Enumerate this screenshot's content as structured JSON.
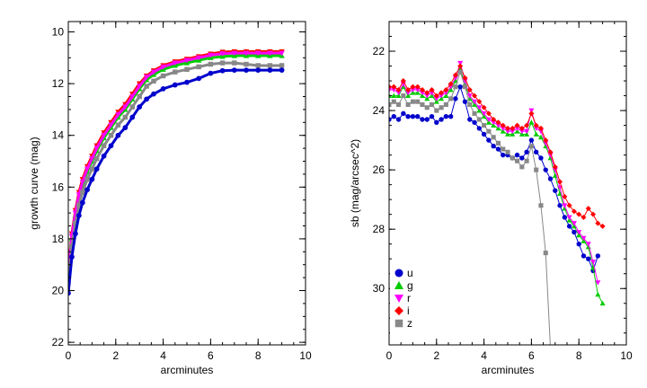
{
  "chart_data": [
    {
      "type": "line",
      "xlabel": "arcminutes",
      "ylabel": "growth curve (mag)",
      "xlim": [
        0,
        10
      ],
      "ylim": [
        22.1,
        9.6
      ],
      "y_inverted": true,
      "x_ticks": [
        0,
        2,
        4,
        6,
        8,
        10
      ],
      "y_ticks": [
        10,
        12,
        14,
        16,
        18,
        20,
        22
      ],
      "x_tick_labels": [
        "0",
        "2",
        "4",
        "6",
        "8",
        "10"
      ],
      "y_tick_labels": [
        "10",
        "12",
        "14",
        "16",
        "18",
        "20",
        "22"
      ],
      "series": [
        {
          "color": "#ff0000",
          "marker": "triangle-down",
          "x": [
            0.0,
            0.15,
            0.3,
            0.45,
            0.6,
            0.8,
            1.0,
            1.2,
            1.5,
            1.8,
            2.1,
            2.4,
            2.7,
            3.0,
            3.3,
            3.6,
            4.0,
            4.5,
            5.0,
            5.5,
            6.0,
            6.5,
            7.0,
            7.5,
            8.0,
            8.5,
            9.0
          ],
          "y": [
            19.2,
            17.8,
            16.9,
            16.2,
            15.7,
            15.2,
            14.8,
            14.4,
            13.9,
            13.5,
            13.1,
            12.8,
            12.4,
            12.0,
            11.7,
            11.5,
            11.3,
            11.15,
            11.05,
            10.95,
            10.85,
            10.78,
            10.76,
            10.76,
            10.76,
            10.76,
            10.76
          ]
        },
        {
          "color": "#00cc00",
          "marker": "triangle-up",
          "x": [
            0.0,
            0.15,
            0.3,
            0.45,
            0.6,
            0.8,
            1.0,
            1.2,
            1.5,
            1.8,
            2.1,
            2.4,
            2.7,
            3.0,
            3.3,
            3.6,
            4.0,
            4.5,
            5.0,
            5.5,
            6.0,
            6.5,
            7.0,
            7.5,
            8.0,
            8.5,
            9.0
          ],
          "y": [
            19.5,
            18.0,
            17.1,
            16.4,
            15.9,
            15.4,
            15.0,
            14.6,
            14.1,
            13.7,
            13.3,
            13.0,
            12.6,
            12.2,
            11.85,
            11.65,
            11.45,
            11.3,
            11.2,
            11.1,
            11.0,
            10.95,
            10.92,
            10.92,
            10.92,
            10.92,
            10.92
          ]
        },
        {
          "color": "#ff00ff",
          "marker": "triangle-down",
          "x": [
            0.0,
            0.15,
            0.3,
            0.45,
            0.6,
            0.8,
            1.0,
            1.2,
            1.5,
            1.8,
            2.1,
            2.4,
            2.7,
            3.0,
            3.3,
            3.6,
            4.0,
            4.5,
            5.0,
            5.5,
            6.0,
            6.5,
            7.0,
            7.5,
            8.0,
            8.5,
            9.0
          ],
          "y": [
            19.3,
            17.9,
            17.0,
            16.3,
            15.8,
            15.3,
            14.9,
            14.5,
            14.0,
            13.6,
            13.2,
            12.9,
            12.5,
            12.1,
            11.75,
            11.55,
            11.35,
            11.2,
            11.1,
            11.0,
            10.9,
            10.84,
            10.82,
            10.82,
            10.82,
            10.82,
            10.82
          ]
        },
        {
          "color": "#888888",
          "marker": "square",
          "x": [
            0.0,
            0.15,
            0.3,
            0.45,
            0.6,
            0.8,
            1.0,
            1.2,
            1.5,
            1.8,
            2.1,
            2.4,
            2.7,
            3.0,
            3.3,
            3.6,
            4.0,
            4.5,
            5.0,
            5.5,
            6.0,
            6.5,
            7.0,
            7.5,
            8.0,
            8.5,
            9.0
          ],
          "y": [
            19.7,
            18.3,
            17.4,
            16.7,
            16.2,
            15.7,
            15.3,
            14.9,
            14.4,
            14.0,
            13.6,
            13.3,
            12.9,
            12.5,
            12.1,
            11.9,
            11.7,
            11.55,
            11.45,
            11.35,
            11.25,
            11.2,
            11.2,
            11.25,
            11.3,
            11.3,
            11.3
          ]
        },
        {
          "color": "#0000cc",
          "marker": "circle",
          "x": [
            0.0,
            0.15,
            0.3,
            0.45,
            0.6,
            0.8,
            1.0,
            1.2,
            1.5,
            1.8,
            2.1,
            2.4,
            2.7,
            3.0,
            3.3,
            3.6,
            4.0,
            4.5,
            5.0,
            5.5,
            6.0,
            6.5,
            7.0,
            7.5,
            8.0,
            8.5,
            9.0
          ],
          "y": [
            20.1,
            18.7,
            17.8,
            17.1,
            16.6,
            16.1,
            15.7,
            15.3,
            14.8,
            14.4,
            14.0,
            13.7,
            13.3,
            12.9,
            12.6,
            12.4,
            12.2,
            12.05,
            11.95,
            11.8,
            11.6,
            11.5,
            11.48,
            11.48,
            11.48,
            11.48,
            11.48
          ]
        }
      ]
    },
    {
      "type": "line",
      "xlabel": "arcminutes",
      "ylabel": "sb (mag/arcsec^2)",
      "xlim": [
        0,
        10
      ],
      "ylim": [
        31.9,
        21.0
      ],
      "y_inverted": true,
      "x_ticks": [
        0,
        2,
        4,
        6,
        8,
        10
      ],
      "y_ticks": [
        22,
        24,
        26,
        28,
        30
      ],
      "x_tick_labels": [
        "0",
        "2",
        "4",
        "6",
        "8",
        "10"
      ],
      "y_tick_labels": [
        "22",
        "24",
        "26",
        "28",
        "30"
      ],
      "legend": {
        "position": "bottom-left",
        "entries": [
          {
            "label": "u",
            "color": "#0000cc",
            "marker": "circle"
          },
          {
            "label": "g",
            "color": "#00cc00",
            "marker": "triangle-up"
          },
          {
            "label": "r",
            "color": "#ff00ff",
            "marker": "triangle-down"
          },
          {
            "label": "i",
            "color": "#ff0000",
            "marker": "diamond"
          },
          {
            "label": "z",
            "color": "#888888",
            "marker": "square"
          }
        ]
      },
      "series": [
        {
          "name": "u",
          "color": "#0000cc",
          "marker": "circle",
          "x": [
            0.0,
            0.2,
            0.4,
            0.6,
            0.8,
            1.0,
            1.2,
            1.4,
            1.6,
            1.8,
            2.0,
            2.2,
            2.4,
            2.6,
            2.8,
            3.0,
            3.2,
            3.4,
            3.6,
            3.8,
            4.0,
            4.2,
            4.4,
            4.6,
            4.8,
            5.0,
            5.2,
            5.4,
            5.6,
            5.8,
            6.0,
            6.2,
            6.4,
            6.6,
            6.8,
            7.0,
            7.2,
            7.4,
            7.6,
            7.8,
            8.0,
            8.2,
            8.4,
            8.6,
            8.8
          ],
          "y": [
            24.3,
            24.2,
            24.3,
            24.1,
            24.2,
            24.2,
            24.2,
            24.3,
            24.3,
            24.2,
            24.4,
            24.3,
            24.2,
            24.2,
            23.6,
            23.2,
            23.7,
            24.3,
            24.4,
            24.6,
            24.8,
            25.0,
            25.2,
            25.3,
            25.5,
            25.5,
            25.6,
            25.5,
            25.6,
            25.4,
            25.0,
            25.4,
            25.6,
            26.0,
            26.3,
            26.7,
            27.2,
            27.6,
            27.9,
            28.1,
            28.5,
            28.9,
            29.0,
            29.4,
            28.9
          ]
        },
        {
          "name": "g",
          "color": "#00cc00",
          "marker": "triangle-up",
          "x": [
            0.0,
            0.2,
            0.4,
            0.6,
            0.8,
            1.0,
            1.2,
            1.4,
            1.6,
            1.8,
            2.0,
            2.2,
            2.4,
            2.6,
            2.8,
            3.0,
            3.2,
            3.4,
            3.6,
            3.8,
            4.0,
            4.2,
            4.4,
            4.6,
            4.8,
            5.0,
            5.2,
            5.4,
            5.6,
            5.8,
            6.0,
            6.2,
            6.4,
            6.6,
            6.8,
            7.0,
            7.2,
            7.4,
            7.6,
            7.8,
            8.0,
            8.2,
            8.4,
            8.6,
            8.8,
            9.0
          ],
          "y": [
            23.5,
            23.5,
            23.5,
            23.2,
            23.5,
            23.4,
            23.4,
            23.5,
            23.6,
            23.5,
            23.7,
            23.6,
            23.5,
            23.3,
            23.0,
            22.6,
            23.1,
            23.6,
            23.8,
            24.0,
            24.2,
            24.4,
            24.5,
            24.6,
            24.7,
            24.8,
            24.8,
            24.7,
            24.8,
            24.8,
            24.4,
            24.8,
            24.9,
            25.2,
            25.6,
            26.2,
            26.8,
            27.3,
            27.7,
            27.9,
            28.2,
            28.4,
            28.6,
            29.3,
            30.2,
            30.5
          ]
        },
        {
          "name": "r",
          "color": "#ff00ff",
          "marker": "triangle-down",
          "x": [
            0.0,
            0.2,
            0.4,
            0.6,
            0.8,
            1.0,
            1.2,
            1.4,
            1.6,
            1.8,
            2.0,
            2.2,
            2.4,
            2.6,
            2.8,
            3.0,
            3.2,
            3.4,
            3.6,
            3.8,
            4.0,
            4.2,
            4.4,
            4.6,
            4.8,
            5.0,
            5.2,
            5.4,
            5.6,
            5.8,
            6.0,
            6.2,
            6.4,
            6.6,
            6.8,
            7.0,
            7.2,
            7.4,
            7.6,
            7.8,
            8.0,
            8.2,
            8.4,
            8.6,
            8.8
          ],
          "y": [
            23.3,
            23.3,
            23.4,
            23.1,
            23.4,
            23.3,
            23.3,
            23.4,
            23.5,
            23.4,
            23.6,
            23.5,
            23.4,
            23.2,
            22.9,
            22.4,
            23.0,
            23.5,
            23.7,
            23.9,
            24.1,
            24.3,
            24.4,
            24.5,
            24.6,
            24.7,
            24.7,
            24.6,
            24.7,
            24.7,
            24.0,
            24.6,
            24.7,
            25.1,
            25.5,
            26.0,
            26.6,
            27.2,
            27.6,
            27.8,
            28.1,
            28.3,
            28.5,
            29.1,
            29.8
          ]
        },
        {
          "name": "i",
          "color": "#ff0000",
          "marker": "diamond",
          "x": [
            0.0,
            0.2,
            0.4,
            0.6,
            0.8,
            1.0,
            1.2,
            1.4,
            1.6,
            1.8,
            2.0,
            2.2,
            2.4,
            2.6,
            2.8,
            3.0,
            3.2,
            3.4,
            3.6,
            3.8,
            4.0,
            4.2,
            4.4,
            4.6,
            4.8,
            5.0,
            5.2,
            5.4,
            5.6,
            5.8,
            6.0,
            6.2,
            6.4,
            6.6,
            6.8,
            7.0,
            7.2,
            7.4,
            7.6,
            7.8,
            8.0,
            8.2,
            8.4,
            8.6,
            8.8,
            9.0
          ],
          "y": [
            23.2,
            23.2,
            23.3,
            23.0,
            23.3,
            23.2,
            23.2,
            23.3,
            23.4,
            23.3,
            23.5,
            23.4,
            23.3,
            23.1,
            22.8,
            22.5,
            22.9,
            23.3,
            23.5,
            23.7,
            23.9,
            24.1,
            24.3,
            24.4,
            24.5,
            24.6,
            24.6,
            24.5,
            24.6,
            24.5,
            24.1,
            24.5,
            24.6,
            25.0,
            25.4,
            25.9,
            26.4,
            26.9,
            27.2,
            27.4,
            27.5,
            27.6,
            27.3,
            27.5,
            27.8,
            27.9
          ]
        },
        {
          "name": "z",
          "color": "#888888",
          "marker": "square",
          "x": [
            0.0,
            0.2,
            0.4,
            0.6,
            0.8,
            1.0,
            1.2,
            1.4,
            1.6,
            1.8,
            2.0,
            2.2,
            2.4,
            2.6,
            2.8,
            3.0,
            3.2,
            3.4,
            3.6,
            3.8,
            4.0,
            4.2,
            4.4,
            4.6,
            4.8,
            5.0,
            5.2,
            5.4,
            5.6,
            5.8,
            6.0,
            6.2,
            6.4,
            6.6,
            6.8
          ],
          "y": [
            23.8,
            23.7,
            23.8,
            23.5,
            23.8,
            23.7,
            23.7,
            23.8,
            23.9,
            23.8,
            24.0,
            23.9,
            23.8,
            23.6,
            23.2,
            22.7,
            23.2,
            23.8,
            24.1,
            24.3,
            24.5,
            24.7,
            24.9,
            25.1,
            25.3,
            25.4,
            25.6,
            25.7,
            25.9,
            25.7,
            25.2,
            26.0,
            27.2,
            28.8,
            32.0
          ]
        }
      ]
    }
  ]
}
